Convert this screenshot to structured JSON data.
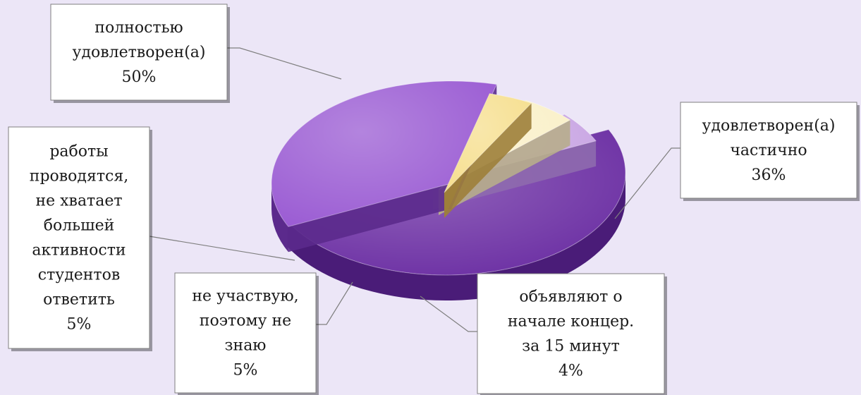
{
  "chart_data": {
    "type": "pie",
    "slices": [
      {
        "lines": [
          "полностью",
          "удовлетворен(а)",
          "50%"
        ],
        "value": 50,
        "color": "#6b2ea3",
        "side": "#4a1c78"
      },
      {
        "lines": [
          "удовлетворен(а)",
          "частично",
          "36%"
        ],
        "value": 36,
        "color": "#9a5bd3",
        "side": "#5b2a8c"
      },
      {
        "lines": [
          "объявляют о",
          "начале концер.",
          "за 15 минут",
          "4%"
        ],
        "value": 4,
        "color": "#f6df8f",
        "side": "#9d7f3a"
      },
      {
        "lines": [
          "не участвую,",
          "поэтому не",
          "знаю",
          "5%"
        ],
        "value": 5,
        "color": "#faf0c8",
        "side": "#b7ad8c"
      },
      {
        "lines": [
          "работы",
          "проводятся,",
          "не хватает",
          "большей",
          "активности",
          "студентов",
          "ответить",
          "5%"
        ],
        "value": 5,
        "color": "#c8a4e3",
        "side": "#8e6aae"
      }
    ]
  }
}
